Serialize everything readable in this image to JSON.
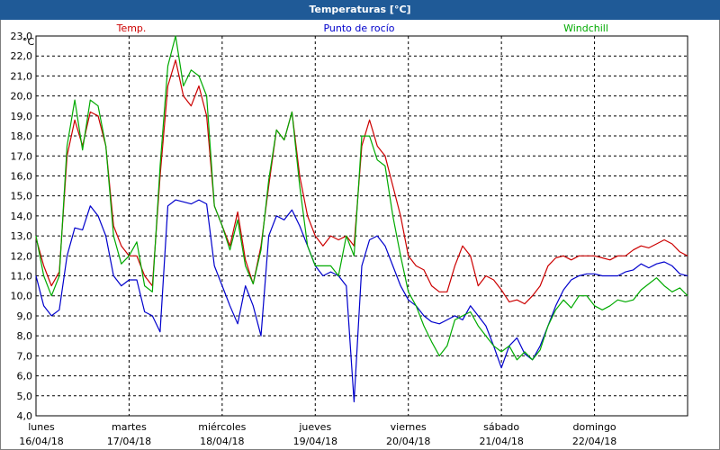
{
  "window": {
    "title": "Temperaturas [°C]"
  },
  "chart_data": {
    "type": "line",
    "ylabel": "°C",
    "ylim": [
      4.0,
      23.0
    ],
    "yticks": [
      "4,0",
      "5,0",
      "6,0",
      "7,0",
      "8,0",
      "9,0",
      "10,0",
      "11,0",
      "12,0",
      "13,0",
      "14,0",
      "15,0",
      "16,0",
      "17,0",
      "18,0",
      "19,0",
      "20,0",
      "21,0",
      "22,0",
      "23,0"
    ],
    "grid": true,
    "legend_position": "top",
    "x_axis": {
      "start": "16/04/18 00:00",
      "end": "23/04/18 00:00",
      "day_labels": [
        {
          "weekday": "lunes",
          "date": "16/04/18"
        },
        {
          "weekday": "martes",
          "date": "17/04/18"
        },
        {
          "weekday": "miércoles",
          "date": "18/04/18"
        },
        {
          "weekday": "jueves",
          "date": "19/04/18"
        },
        {
          "weekday": "viernes",
          "date": "20/04/18"
        },
        {
          "weekday": "sábado",
          "date": "21/04/18"
        },
        {
          "weekday": "domingo",
          "date": "22/04/18"
        }
      ]
    },
    "series": [
      {
        "name": "Temp.",
        "color": "#cc0000",
        "points": [
          [
            "16/04/18 00:00",
            12.9
          ],
          [
            "16/04/18 02:00",
            11.5
          ],
          [
            "16/04/18 04:00",
            10.5
          ],
          [
            "16/04/18 06:00",
            11.2
          ],
          [
            "16/04/18 08:00",
            17.0
          ],
          [
            "16/04/18 10:00",
            18.8
          ],
          [
            "16/04/18 12:00",
            17.5
          ],
          [
            "16/04/18 14:00",
            19.2
          ],
          [
            "16/04/18 16:00",
            19.0
          ],
          [
            "16/04/18 18:00",
            17.5
          ],
          [
            "16/04/18 20:00",
            13.5
          ],
          [
            "16/04/18 22:00",
            12.5
          ],
          [
            "17/04/18 00:00",
            12.0
          ],
          [
            "17/04/18 02:00",
            12.0
          ],
          [
            "17/04/18 04:00",
            11.0
          ],
          [
            "17/04/18 06:00",
            10.5
          ],
          [
            "17/04/18 08:00",
            16.0
          ],
          [
            "17/04/18 10:00",
            20.5
          ],
          [
            "17/04/18 12:00",
            21.8
          ],
          [
            "17/04/18 14:00",
            20.0
          ],
          [
            "17/04/18 16:00",
            19.5
          ],
          [
            "17/04/18 18:00",
            20.5
          ],
          [
            "17/04/18 20:00",
            19.0
          ],
          [
            "17/04/18 22:00",
            14.5
          ],
          [
            "18/04/18 00:00",
            13.5
          ],
          [
            "18/04/18 02:00",
            12.5
          ],
          [
            "18/04/18 04:00",
            14.2
          ],
          [
            "18/04/18 06:00",
            11.8
          ],
          [
            "18/04/18 08:00",
            10.6
          ],
          [
            "18/04/18 10:00",
            12.5
          ],
          [
            "18/04/18 12:00",
            15.5
          ],
          [
            "18/04/18 14:00",
            18.3
          ],
          [
            "18/04/18 16:00",
            17.8
          ],
          [
            "18/04/18 18:00",
            19.2
          ],
          [
            "18/04/18 20:00",
            16.0
          ],
          [
            "18/04/18 22:00",
            14.0
          ],
          [
            "19/04/18 00:00",
            13.0
          ],
          [
            "19/04/18 02:00",
            12.5
          ],
          [
            "19/04/18 04:00",
            13.0
          ],
          [
            "19/04/18 06:00",
            12.8
          ],
          [
            "19/04/18 08:00",
            13.0
          ],
          [
            "19/04/18 10:00",
            12.5
          ],
          [
            "19/04/18 12:00",
            17.5
          ],
          [
            "19/04/18 14:00",
            18.8
          ],
          [
            "19/04/18 16:00",
            17.5
          ],
          [
            "19/04/18 18:00",
            17.0
          ],
          [
            "19/04/18 20:00",
            15.5
          ],
          [
            "19/04/18 22:00",
            14.0
          ],
          [
            "20/04/18 00:00",
            12.0
          ],
          [
            "20/04/18 02:00",
            11.5
          ],
          [
            "20/04/18 04:00",
            11.3
          ],
          [
            "20/04/18 06:00",
            10.5
          ],
          [
            "20/04/18 08:00",
            10.2
          ],
          [
            "20/04/18 10:00",
            10.2
          ],
          [
            "20/04/18 12:00",
            11.5
          ],
          [
            "20/04/18 14:00",
            12.5
          ],
          [
            "20/04/18 16:00",
            12.0
          ],
          [
            "20/04/18 18:00",
            10.5
          ],
          [
            "20/04/18 20:00",
            11.0
          ],
          [
            "20/04/18 22:00",
            10.8
          ],
          [
            "21/04/18 00:00",
            10.3
          ],
          [
            "21/04/18 02:00",
            9.7
          ],
          [
            "21/04/18 04:00",
            9.8
          ],
          [
            "21/04/18 06:00",
            9.6
          ],
          [
            "21/04/18 08:00",
            10.0
          ],
          [
            "21/04/18 10:00",
            10.5
          ],
          [
            "21/04/18 12:00",
            11.5
          ],
          [
            "21/04/18 14:00",
            11.9
          ],
          [
            "21/04/18 16:00",
            12.0
          ],
          [
            "21/04/18 18:00",
            11.8
          ],
          [
            "21/04/18 20:00",
            12.0
          ],
          [
            "21/04/18 22:00",
            12.0
          ],
          [
            "22/04/18 00:00",
            12.0
          ],
          [
            "22/04/18 02:00",
            11.9
          ],
          [
            "22/04/18 04:00",
            11.8
          ],
          [
            "22/04/18 06:00",
            12.0
          ],
          [
            "22/04/18 08:00",
            12.0
          ],
          [
            "22/04/18 10:00",
            12.3
          ],
          [
            "22/04/18 12:00",
            12.5
          ],
          [
            "22/04/18 14:00",
            12.4
          ],
          [
            "22/04/18 16:00",
            12.6
          ],
          [
            "22/04/18 18:00",
            12.8
          ],
          [
            "22/04/18 20:00",
            12.6
          ],
          [
            "22/04/18 22:00",
            12.2
          ],
          [
            "23/04/18 00:00",
            12.0
          ]
        ]
      },
      {
        "name": "Punto de rocío",
        "color": "#0000cc",
        "points": [
          [
            "16/04/18 00:00",
            11.0
          ],
          [
            "16/04/18 02:00",
            9.5
          ],
          [
            "16/04/18 04:00",
            9.0
          ],
          [
            "16/04/18 06:00",
            9.3
          ],
          [
            "16/04/18 08:00",
            12.0
          ],
          [
            "16/04/18 10:00",
            13.4
          ],
          [
            "16/04/18 12:00",
            13.3
          ],
          [
            "16/04/18 14:00",
            14.5
          ],
          [
            "16/04/18 16:00",
            14.0
          ],
          [
            "16/04/18 18:00",
            13.0
          ],
          [
            "16/04/18 20:00",
            11.0
          ],
          [
            "16/04/18 22:00",
            10.5
          ],
          [
            "17/04/18 00:00",
            10.8
          ],
          [
            "17/04/18 02:00",
            10.8
          ],
          [
            "17/04/18 04:00",
            9.2
          ],
          [
            "17/04/18 06:00",
            9.0
          ],
          [
            "17/04/18 08:00",
            8.2
          ],
          [
            "17/04/18 10:00",
            14.5
          ],
          [
            "17/04/18 12:00",
            14.8
          ],
          [
            "17/04/18 14:00",
            14.7
          ],
          [
            "17/04/18 16:00",
            14.6
          ],
          [
            "17/04/18 18:00",
            14.8
          ],
          [
            "17/04/18 20:00",
            14.6
          ],
          [
            "17/04/18 22:00",
            11.5
          ],
          [
            "18/04/18 00:00",
            10.5
          ],
          [
            "18/04/18 02:00",
            9.5
          ],
          [
            "18/04/18 04:00",
            8.6
          ],
          [
            "18/04/18 06:00",
            10.5
          ],
          [
            "18/04/18 08:00",
            9.5
          ],
          [
            "18/04/18 10:00",
            8.0
          ],
          [
            "18/04/18 12:00",
            13.0
          ],
          [
            "18/04/18 14:00",
            14.0
          ],
          [
            "18/04/18 16:00",
            13.8
          ],
          [
            "18/04/18 18:00",
            14.3
          ],
          [
            "18/04/18 20:00",
            13.5
          ],
          [
            "18/04/18 22:00",
            12.5
          ],
          [
            "19/04/18 00:00",
            11.5
          ],
          [
            "19/04/18 02:00",
            11.0
          ],
          [
            "19/04/18 04:00",
            11.2
          ],
          [
            "19/04/18 06:00",
            11.0
          ],
          [
            "19/04/18 08:00",
            10.5
          ],
          [
            "19/04/18 10:00",
            4.7
          ],
          [
            "19/04/18 12:00",
            11.5
          ],
          [
            "19/04/18 14:00",
            12.8
          ],
          [
            "19/04/18 16:00",
            13.0
          ],
          [
            "19/04/18 18:00",
            12.5
          ],
          [
            "19/04/18 20:00",
            11.5
          ],
          [
            "19/04/18 22:00",
            10.5
          ],
          [
            "20/04/18 00:00",
            9.8
          ],
          [
            "20/04/18 02:00",
            9.5
          ],
          [
            "20/04/18 04:00",
            9.0
          ],
          [
            "20/04/18 06:00",
            8.7
          ],
          [
            "20/04/18 08:00",
            8.6
          ],
          [
            "20/04/18 10:00",
            8.8
          ],
          [
            "20/04/18 12:00",
            9.0
          ],
          [
            "20/04/18 14:00",
            8.8
          ],
          [
            "20/04/18 16:00",
            9.5
          ],
          [
            "20/04/18 18:00",
            9.0
          ],
          [
            "20/04/18 20:00",
            8.5
          ],
          [
            "20/04/18 22:00",
            7.5
          ],
          [
            "21/04/18 00:00",
            6.4
          ],
          [
            "21/04/18 02:00",
            7.5
          ],
          [
            "21/04/18 04:00",
            7.9
          ],
          [
            "21/04/18 06:00",
            7.1
          ],
          [
            "21/04/18 08:00",
            6.8
          ],
          [
            "21/04/18 10:00",
            7.5
          ],
          [
            "21/04/18 12:00",
            8.5
          ],
          [
            "21/04/18 14:00",
            9.5
          ],
          [
            "21/04/18 16:00",
            10.3
          ],
          [
            "21/04/18 18:00",
            10.8
          ],
          [
            "21/04/18 20:00",
            11.0
          ],
          [
            "21/04/18 22:00",
            11.1
          ],
          [
            "22/04/18 00:00",
            11.1
          ],
          [
            "22/04/18 02:00",
            11.0
          ],
          [
            "22/04/18 04:00",
            11.0
          ],
          [
            "22/04/18 06:00",
            11.0
          ],
          [
            "22/04/18 08:00",
            11.2
          ],
          [
            "22/04/18 10:00",
            11.3
          ],
          [
            "22/04/18 12:00",
            11.6
          ],
          [
            "22/04/18 14:00",
            11.4
          ],
          [
            "22/04/18 16:00",
            11.6
          ],
          [
            "22/04/18 18:00",
            11.7
          ],
          [
            "22/04/18 20:00",
            11.5
          ],
          [
            "22/04/18 22:00",
            11.1
          ],
          [
            "23/04/18 00:00",
            11.0
          ]
        ]
      },
      {
        "name": "Windchill",
        "color": "#00aa00",
        "points": [
          [
            "16/04/18 00:00",
            13.0
          ],
          [
            "16/04/18 02:00",
            11.0
          ],
          [
            "16/04/18 04:00",
            10.0
          ],
          [
            "16/04/18 06:00",
            11.0
          ],
          [
            "16/04/18 08:00",
            17.5
          ],
          [
            "16/04/18 10:00",
            19.8
          ],
          [
            "16/04/18 12:00",
            17.3
          ],
          [
            "16/04/18 14:00",
            19.8
          ],
          [
            "16/04/18 16:00",
            19.5
          ],
          [
            "16/04/18 18:00",
            17.5
          ],
          [
            "16/04/18 20:00",
            13.0
          ],
          [
            "16/04/18 22:00",
            11.6
          ],
          [
            "17/04/18 00:00",
            12.0
          ],
          [
            "17/04/18 02:00",
            12.7
          ],
          [
            "17/04/18 04:00",
            10.5
          ],
          [
            "17/04/18 06:00",
            10.2
          ],
          [
            "17/04/18 08:00",
            16.5
          ],
          [
            "17/04/18 10:00",
            21.5
          ],
          [
            "17/04/18 12:00",
            23.0
          ],
          [
            "17/04/18 14:00",
            20.5
          ],
          [
            "17/04/18 16:00",
            21.3
          ],
          [
            "17/04/18 18:00",
            21.0
          ],
          [
            "17/04/18 20:00",
            20.0
          ],
          [
            "17/04/18 22:00",
            14.5
          ],
          [
            "18/04/18 00:00",
            13.5
          ],
          [
            "18/04/18 02:00",
            12.3
          ],
          [
            "18/04/18 04:00",
            13.8
          ],
          [
            "18/04/18 06:00",
            11.5
          ],
          [
            "18/04/18 08:00",
            10.6
          ],
          [
            "18/04/18 10:00",
            12.3
          ],
          [
            "18/04/18 12:00",
            15.8
          ],
          [
            "18/04/18 14:00",
            18.3
          ],
          [
            "18/04/18 16:00",
            17.8
          ],
          [
            "18/04/18 18:00",
            19.2
          ],
          [
            "18/04/18 20:00",
            15.5
          ],
          [
            "18/04/18 22:00",
            12.5
          ],
          [
            "19/04/18 00:00",
            11.5
          ],
          [
            "19/04/18 02:00",
            11.5
          ],
          [
            "19/04/18 04:00",
            11.5
          ],
          [
            "19/04/18 06:00",
            11.0
          ],
          [
            "19/04/18 08:00",
            13.0
          ],
          [
            "19/04/18 10:00",
            12.0
          ],
          [
            "19/04/18 12:00",
            18.0
          ],
          [
            "19/04/18 14:00",
            18.0
          ],
          [
            "19/04/18 16:00",
            16.8
          ],
          [
            "19/04/18 18:00",
            16.5
          ],
          [
            "19/04/18 20:00",
            14.0
          ],
          [
            "19/04/18 22:00",
            12.0
          ],
          [
            "20/04/18 00:00",
            10.2
          ],
          [
            "20/04/18 02:00",
            9.5
          ],
          [
            "20/04/18 04:00",
            8.5
          ],
          [
            "20/04/18 06:00",
            7.7
          ],
          [
            "20/04/18 08:00",
            7.0
          ],
          [
            "20/04/18 10:00",
            7.5
          ],
          [
            "20/04/18 12:00",
            8.8
          ],
          [
            "20/04/18 14:00",
            9.0
          ],
          [
            "20/04/18 16:00",
            9.2
          ],
          [
            "20/04/18 18:00",
            8.5
          ],
          [
            "20/04/18 20:00",
            8.0
          ],
          [
            "20/04/18 22:00",
            7.5
          ],
          [
            "21/04/18 00:00",
            7.2
          ],
          [
            "21/04/18 02:00",
            7.5
          ],
          [
            "21/04/18 04:00",
            6.8
          ],
          [
            "21/04/18 06:00",
            7.2
          ],
          [
            "21/04/18 08:00",
            6.8
          ],
          [
            "21/04/18 10:00",
            7.3
          ],
          [
            "21/04/18 12:00",
            8.5
          ],
          [
            "21/04/18 14:00",
            9.3
          ],
          [
            "21/04/18 16:00",
            9.8
          ],
          [
            "21/04/18 18:00",
            9.4
          ],
          [
            "21/04/18 20:00",
            10.0
          ],
          [
            "21/04/18 22:00",
            10.0
          ],
          [
            "22/04/18 00:00",
            9.5
          ],
          [
            "22/04/18 02:00",
            9.3
          ],
          [
            "22/04/18 04:00",
            9.5
          ],
          [
            "22/04/18 06:00",
            9.8
          ],
          [
            "22/04/18 08:00",
            9.7
          ],
          [
            "22/04/18 10:00",
            9.8
          ],
          [
            "22/04/18 12:00",
            10.3
          ],
          [
            "22/04/18 14:00",
            10.6
          ],
          [
            "22/04/18 16:00",
            10.9
          ],
          [
            "22/04/18 18:00",
            10.5
          ],
          [
            "22/04/18 20:00",
            10.2
          ],
          [
            "22/04/18 22:00",
            10.4
          ],
          [
            "23/04/18 00:00",
            10.0
          ]
        ]
      }
    ]
  }
}
